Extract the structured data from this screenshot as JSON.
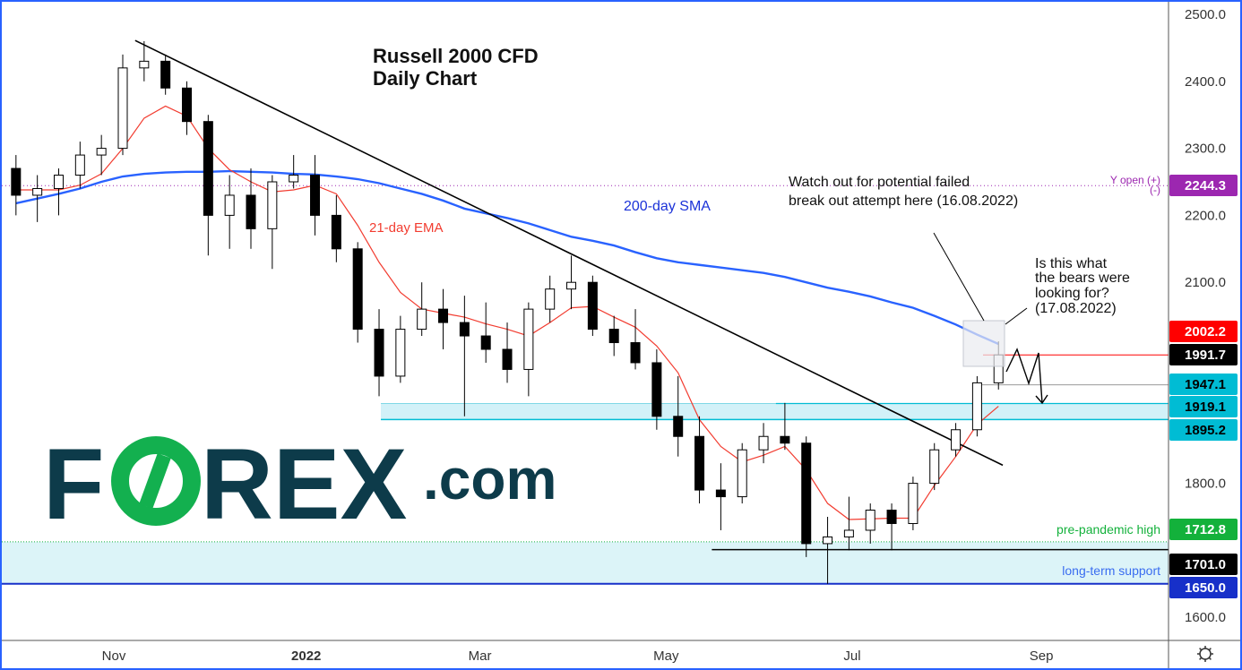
{
  "chart_data": {
    "type": "candlestick",
    "title": "Russell 2000 CFD",
    "subtitle": "Daily Chart",
    "ylim": [
      1580,
      2520
    ],
    "grid": false,
    "y_ticks": [
      "2500.0",
      "2400.0",
      "2300.0",
      "2200.0",
      "2100.0",
      "1800.0",
      "1600.0"
    ],
    "x_ticks": [
      {
        "label": "Nov",
        "date": "2021-11-01"
      },
      {
        "label": "2022",
        "date": "2022-01-01"
      },
      {
        "label": "Mar",
        "date": "2022-03-01"
      },
      {
        "label": "May",
        "date": "2022-05-01"
      },
      {
        "label": "Jul",
        "date": "2022-07-01"
      },
      {
        "label": "Sep",
        "date": "2022-09-01"
      }
    ],
    "candles": [
      {
        "d": "2021-09-27",
        "o": 2270,
        "h": 2290,
        "l": 2200,
        "c": 2230
      },
      {
        "d": "2021-10-04",
        "o": 2230,
        "h": 2260,
        "l": 2190,
        "c": 2240
      },
      {
        "d": "2021-10-11",
        "o": 2240,
        "h": 2270,
        "l": 2200,
        "c": 2260
      },
      {
        "d": "2021-10-18",
        "o": 2260,
        "h": 2310,
        "l": 2240,
        "c": 2290
      },
      {
        "d": "2021-10-25",
        "o": 2290,
        "h": 2320,
        "l": 2260,
        "c": 2300
      },
      {
        "d": "2021-11-01",
        "o": 2300,
        "h": 2440,
        "l": 2290,
        "c": 2420
      },
      {
        "d": "2021-11-08",
        "o": 2420,
        "h": 2460,
        "l": 2400,
        "c": 2430
      },
      {
        "d": "2021-11-15",
        "o": 2430,
        "h": 2440,
        "l": 2380,
        "c": 2390
      },
      {
        "d": "2021-11-22",
        "o": 2390,
        "h": 2400,
        "l": 2320,
        "c": 2340
      },
      {
        "d": "2021-11-29",
        "o": 2340,
        "h": 2350,
        "l": 2140,
        "c": 2200
      },
      {
        "d": "2021-12-06",
        "o": 2200,
        "h": 2260,
        "l": 2150,
        "c": 2230
      },
      {
        "d": "2021-12-13",
        "o": 2230,
        "h": 2270,
        "l": 2150,
        "c": 2180
      },
      {
        "d": "2021-12-20",
        "o": 2180,
        "h": 2260,
        "l": 2120,
        "c": 2250
      },
      {
        "d": "2021-12-27",
        "o": 2250,
        "h": 2290,
        "l": 2240,
        "c": 2260
      },
      {
        "d": "2022-01-03",
        "o": 2260,
        "h": 2290,
        "l": 2170,
        "c": 2200
      },
      {
        "d": "2022-01-10",
        "o": 2200,
        "h": 2230,
        "l": 2130,
        "c": 2150
      },
      {
        "d": "2022-01-17",
        "o": 2150,
        "h": 2160,
        "l": 2010,
        "c": 2030
      },
      {
        "d": "2022-01-24",
        "o": 2030,
        "h": 2060,
        "l": 1930,
        "c": 1960
      },
      {
        "d": "2022-01-31",
        "o": 1960,
        "h": 2050,
        "l": 1950,
        "c": 2030
      },
      {
        "d": "2022-02-07",
        "o": 2030,
        "h": 2100,
        "l": 2020,
        "c": 2060
      },
      {
        "d": "2022-02-14",
        "o": 2060,
        "h": 2090,
        "l": 2000,
        "c": 2040
      },
      {
        "d": "2022-02-21",
        "o": 2040,
        "h": 2080,
        "l": 1900,
        "c": 2020
      },
      {
        "d": "2022-02-28",
        "o": 2020,
        "h": 2070,
        "l": 1980,
        "c": 2000
      },
      {
        "d": "2022-03-07",
        "o": 2000,
        "h": 2040,
        "l": 1950,
        "c": 1970
      },
      {
        "d": "2022-03-14",
        "o": 1970,
        "h": 2070,
        "l": 1930,
        "c": 2060
      },
      {
        "d": "2022-03-21",
        "o": 2060,
        "h": 2110,
        "l": 2040,
        "c": 2090
      },
      {
        "d": "2022-03-28",
        "o": 2090,
        "h": 2140,
        "l": 2060,
        "c": 2100
      },
      {
        "d": "2022-04-04",
        "o": 2100,
        "h": 2110,
        "l": 2020,
        "c": 2030
      },
      {
        "d": "2022-04-11",
        "o": 2030,
        "h": 2050,
        "l": 1990,
        "c": 2010
      },
      {
        "d": "2022-04-18",
        "o": 2010,
        "h": 2060,
        "l": 1970,
        "c": 1980
      },
      {
        "d": "2022-04-25",
        "o": 1980,
        "h": 2000,
        "l": 1880,
        "c": 1900
      },
      {
        "d": "2022-05-02",
        "o": 1900,
        "h": 1960,
        "l": 1840,
        "c": 1870
      },
      {
        "d": "2022-05-09",
        "o": 1870,
        "h": 1900,
        "l": 1770,
        "c": 1790
      },
      {
        "d": "2022-05-16",
        "o": 1790,
        "h": 1830,
        "l": 1730,
        "c": 1780
      },
      {
        "d": "2022-05-23",
        "o": 1780,
        "h": 1860,
        "l": 1770,
        "c": 1850
      },
      {
        "d": "2022-05-30",
        "o": 1850,
        "h": 1890,
        "l": 1830,
        "c": 1870
      },
      {
        "d": "2022-06-06",
        "o": 1870,
        "h": 1920,
        "l": 1850,
        "c": 1860
      },
      {
        "d": "2022-06-13",
        "o": 1860,
        "h": 1870,
        "l": 1690,
        "c": 1710
      },
      {
        "d": "2022-06-20",
        "o": 1710,
        "h": 1750,
        "l": 1650,
        "c": 1720
      },
      {
        "d": "2022-06-27",
        "o": 1720,
        "h": 1780,
        "l": 1700,
        "c": 1730
      },
      {
        "d": "2022-07-04",
        "o": 1730,
        "h": 1770,
        "l": 1710,
        "c": 1760
      },
      {
        "d": "2022-07-11",
        "o": 1760,
        "h": 1770,
        "l": 1700,
        "c": 1740
      },
      {
        "d": "2022-07-18",
        "o": 1740,
        "h": 1810,
        "l": 1730,
        "c": 1800
      },
      {
        "d": "2022-07-25",
        "o": 1800,
        "h": 1860,
        "l": 1790,
        "c": 1850
      },
      {
        "d": "2022-08-01",
        "o": 1850,
        "h": 1890,
        "l": 1840,
        "c": 1880
      },
      {
        "d": "2022-08-08",
        "o": 1880,
        "h": 1960,
        "l": 1870,
        "c": 1950
      },
      {
        "d": "2022-08-15",
        "o": 1950,
        "h": 2012,
        "l": 1940,
        "c": 1991.7
      }
    ],
    "series": [
      {
        "name": "200-day SMA",
        "color": "#2962ff",
        "values": [
          2218,
          2225,
          2232,
          2240,
          2250,
          2258,
          2262,
          2264,
          2265,
          2265,
          2266,
          2265,
          2264,
          2262,
          2261,
          2258,
          2254,
          2248,
          2240,
          2232,
          2222,
          2210,
          2203,
          2196,
          2188,
          2178,
          2168,
          2162,
          2155,
          2145,
          2136,
          2130,
          2126,
          2122,
          2118,
          2114,
          2108,
          2100,
          2092,
          2086,
          2079,
          2070,
          2062,
          2050,
          2037,
          2022,
          2008
        ]
      },
      {
        "name": "21-day EMA",
        "color": "#f23c30",
        "values": [
          2238,
          2238,
          2238,
          2245,
          2262,
          2300,
          2345,
          2363,
          2348,
          2300,
          2268,
          2250,
          2235,
          2238,
          2245,
          2232,
          2185,
          2130,
          2085,
          2060,
          2054,
          2048,
          2038,
          2030,
          2020,
          2040,
          2062,
          2064,
          2048,
          2033,
          2005,
          1965,
          1895,
          1855,
          1832,
          1842,
          1855,
          1820,
          1770,
          1746,
          1747,
          1748,
          1748,
          1797,
          1840,
          1888,
          1915
        ]
      }
    ],
    "trendline": {
      "from": {
        "d": "2021-11-08",
        "p": 2461
      },
      "to": {
        "d": "2022-08-17",
        "p": 1827
      },
      "color": "#000000"
    },
    "levels": [
      {
        "value": "2244.3",
        "p": 2244.3,
        "label": "Y open (+)",
        "label2": "(-)",
        "color": "#9c27b0",
        "text_color": "#ffffff"
      },
      {
        "value": "2002.2",
        "p": 2002.2,
        "color": "#ff0000",
        "text_color": "#ffffff"
      },
      {
        "value": "1991.7",
        "p": 1991.7,
        "color": "#000000",
        "text_color": "#ffffff"
      },
      {
        "value": "1947.1",
        "p": 1947.1,
        "color": "#00bcd4",
        "text_color": "#000000"
      },
      {
        "value": "1919.1",
        "p": 1919.1,
        "color": "#00bcd4",
        "text_color": "#000000"
      },
      {
        "value": "1895.2",
        "p": 1895.2,
        "color": "#00bcd4",
        "text_color": "#000000"
      },
      {
        "value": "1712.8",
        "p": 1712.8,
        "label": "pre-pandemic high",
        "color": "#13b13b",
        "text_color": "#ffffff"
      },
      {
        "value": "1701.0",
        "p": 1701.0,
        "color": "#000000",
        "text_color": "#ffffff"
      },
      {
        "value": "1650.0",
        "p": 1650.0,
        "label": "long-term support",
        "color": "#1730c9",
        "text_color": "#ffffff"
      }
    ],
    "annotations": {
      "ema_label": "21-day EMA",
      "sma_label": "200-day SMA",
      "note1": [
        "Watch out for potential failed",
        "break out attempt here (16.08.2022)"
      ],
      "note2": [
        "Is this what",
        "the bears were",
        "looking for?",
        "(17.08.2022)"
      ]
    }
  },
  "logo": {
    "text_a": "F",
    "text_o": "O",
    "text_b": "REX",
    "text_com": ".com",
    "dark": "#0d3b4a",
    "green": "#13b04f"
  },
  "settings_icon": "gear-icon"
}
